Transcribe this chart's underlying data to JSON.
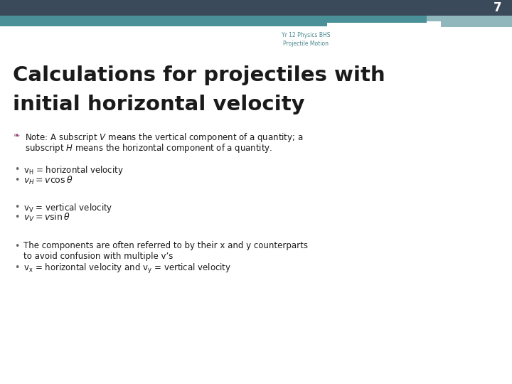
{
  "slide_number": "7",
  "subtitle_line1": "Yr 12 Physics BHS",
  "subtitle_line2": "Projectile Motion",
  "title_line1": "Calculations for projectiles with",
  "title_line2": "initial horizontal velocity",
  "bg_color": "#ffffff",
  "header_dark_color": "#3a4a5a",
  "header_teal_color": "#4a9098",
  "header_light_teal": "#90b8bc",
  "slide_num_color": "#ffffff",
  "subtitle_color": "#4a8890",
  "title_color": "#1a1a1a",
  "bullet_special_color": "#8B4070",
  "text_color": "#1a1a1a",
  "bullet_dot_color": "#666666"
}
